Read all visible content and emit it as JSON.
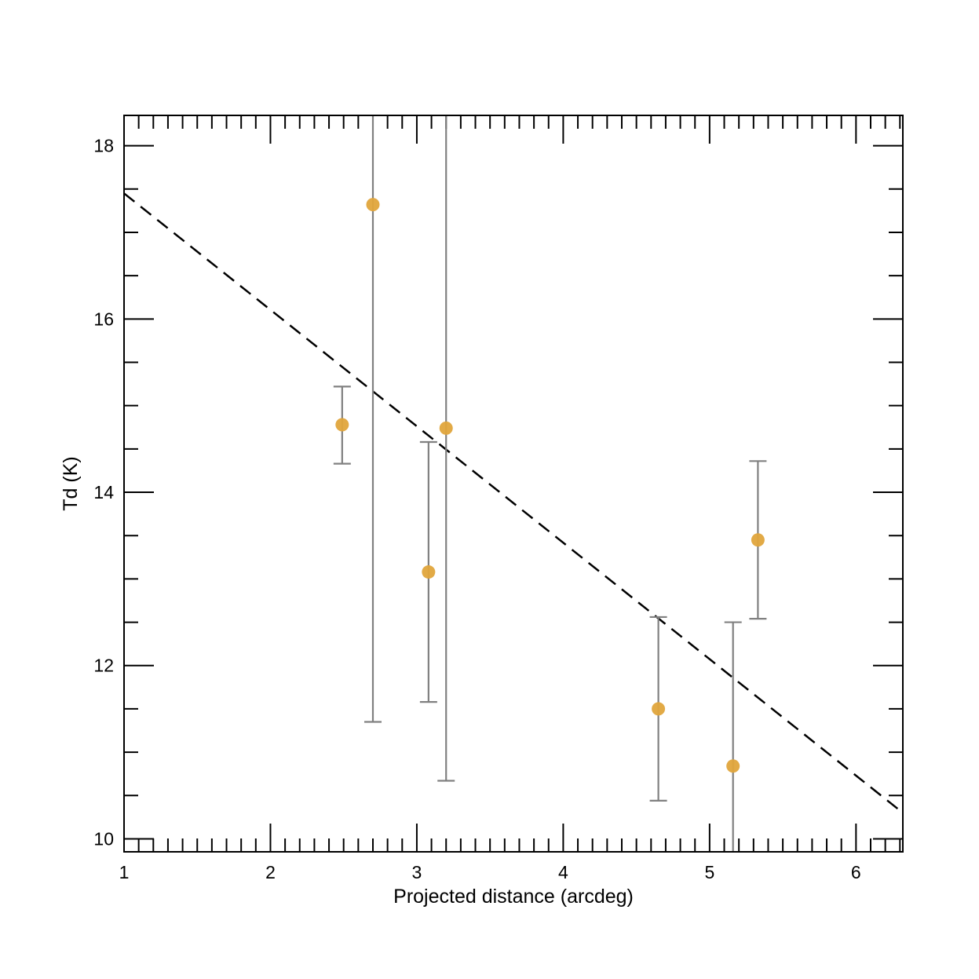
{
  "chart_data": {
    "type": "scatter",
    "title": "",
    "xlabel": "Projected distance (arcdeg)",
    "ylabel": "Td (K)",
    "xlim": [
      1,
      6.32
    ],
    "ylim": [
      9.85,
      18.35
    ],
    "x_ticks": [
      1,
      2,
      3,
      4,
      5,
      6
    ],
    "y_ticks": [
      10,
      12,
      14,
      16,
      18
    ],
    "x_tick_labels": [
      "1",
      "2",
      "3",
      "4",
      "5",
      "6"
    ],
    "y_tick_labels": [
      "10",
      "12",
      "14",
      "16",
      "18"
    ],
    "grid": false,
    "legend": "none",
    "points": [
      {
        "x": 2.49,
        "y": 14.78,
        "y_low": 14.33,
        "y_high": 15.22
      },
      {
        "x": 2.7,
        "y": 17.32,
        "y_low": 11.35,
        "y_high": 18.35
      },
      {
        "x": 3.08,
        "y": 13.08,
        "y_low": 11.58,
        "y_high": 14.58
      },
      {
        "x": 3.2,
        "y": 14.74,
        "y_low": 10.67,
        "y_high": 18.35
      },
      {
        "x": 4.65,
        "y": 11.5,
        "y_low": 10.44,
        "y_high": 12.56
      },
      {
        "x": 5.16,
        "y": 10.84,
        "y_low": 9.85,
        "y_high": 12.5
      },
      {
        "x": 5.33,
        "y": 13.45,
        "y_low": 12.54,
        "y_high": 14.36
      }
    ],
    "fit_line": {
      "style": "dashed",
      "color": "#000000",
      "x": [
        1,
        6.32
      ],
      "y": [
        17.45,
        10.3
      ]
    },
    "colors": {
      "marker": "#e0a53c",
      "errorbar": "#808080",
      "axes": "#000000"
    }
  }
}
